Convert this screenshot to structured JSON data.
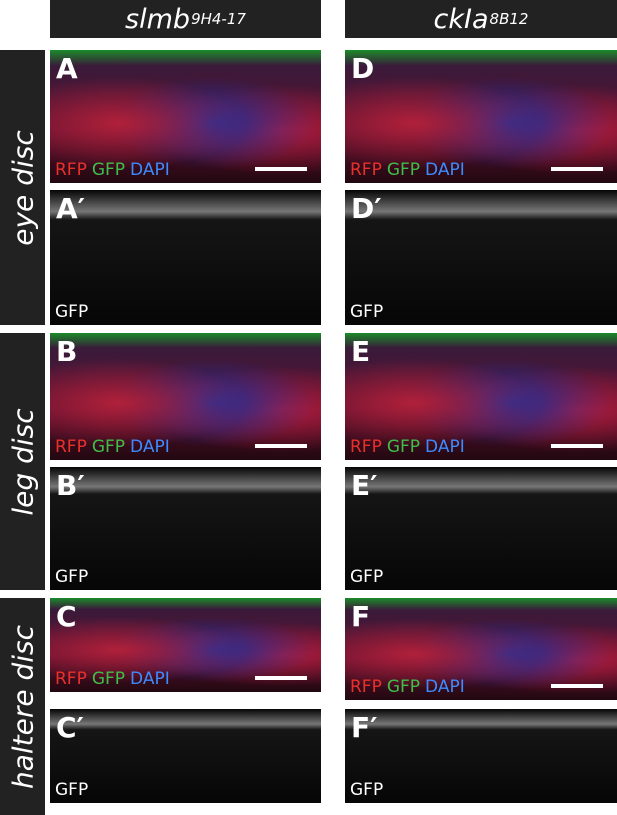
{
  "columns": [
    {
      "gene": "slmb",
      "allele": "9H4-17"
    },
    {
      "gene": "ckIa",
      "allele": "8B12"
    }
  ],
  "rows": [
    {
      "label": "eye disc"
    },
    {
      "label": "leg disc"
    },
    {
      "label": "haltere disc"
    }
  ],
  "panels": [
    {
      "letter": "A",
      "channels": [
        {
          "name": "RFP",
          "color": "#e8312a"
        },
        {
          "name": "GFP",
          "color": "#3fbf4a"
        },
        {
          "name": "DAPI",
          "color": "#3d8bff"
        }
      ]
    },
    {
      "letter": "A′",
      "channels": [
        {
          "name": "GFP",
          "color": "#ffffff"
        }
      ]
    },
    {
      "letter": "B",
      "channels": [
        {
          "name": "RFP",
          "color": "#e8312a"
        },
        {
          "name": "GFP",
          "color": "#3fbf4a"
        },
        {
          "name": "DAPI",
          "color": "#3d8bff"
        }
      ]
    },
    {
      "letter": "B′",
      "channels": [
        {
          "name": "GFP",
          "color": "#ffffff"
        }
      ]
    },
    {
      "letter": "C",
      "channels": [
        {
          "name": "RFP",
          "color": "#e8312a"
        },
        {
          "name": "GFP",
          "color": "#3fbf4a"
        },
        {
          "name": "DAPI",
          "color": "#3d8bff"
        }
      ]
    },
    {
      "letter": "C′",
      "channels": [
        {
          "name": "GFP",
          "color": "#ffffff"
        }
      ]
    },
    {
      "letter": "D",
      "channels": [
        {
          "name": "RFP",
          "color": "#e8312a"
        },
        {
          "name": "GFP",
          "color": "#3fbf4a"
        },
        {
          "name": "DAPI",
          "color": "#3d8bff"
        }
      ]
    },
    {
      "letter": "D′",
      "channels": [
        {
          "name": "GFP",
          "color": "#ffffff"
        }
      ]
    },
    {
      "letter": "E",
      "channels": [
        {
          "name": "RFP",
          "color": "#e8312a"
        },
        {
          "name": "GFP",
          "color": "#3fbf4a"
        },
        {
          "name": "DAPI",
          "color": "#3d8bff"
        }
      ]
    },
    {
      "letter": "E′",
      "channels": [
        {
          "name": "GFP",
          "color": "#ffffff"
        }
      ]
    },
    {
      "letter": "F",
      "channels": [
        {
          "name": "RFP",
          "color": "#e8312a"
        },
        {
          "name": "GFP",
          "color": "#3fbf4a"
        },
        {
          "name": "DAPI",
          "color": "#3d8bff"
        }
      ]
    },
    {
      "letter": "F′",
      "channels": [
        {
          "name": "GFP",
          "color": "#ffffff"
        }
      ]
    }
  ]
}
